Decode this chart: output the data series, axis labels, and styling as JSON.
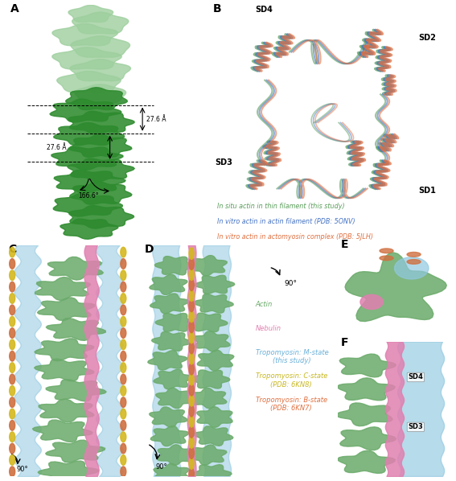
{
  "panel_label_fontsize": 10,
  "panel_label_fontweight": "bold",
  "background_color": "#ffffff",
  "legend_B": {
    "items": [
      {
        "label": "In situ actin in thin filament (this study)",
        "color": "#5a9e5a"
      },
      {
        "label": "In vitro actin in actin filament (PDB: 5ONV)",
        "color": "#4472c4"
      },
      {
        "label": "In vitro actin in actomyosin complex (PDB: 5JLH)",
        "color": "#e07040"
      }
    ],
    "fontsize": 5.8
  },
  "legend_CD": {
    "items": [
      {
        "label": "Actin",
        "color": "#6aaa6a"
      },
      {
        "label": "Nebulin",
        "color": "#e080b0"
      },
      {
        "label": "Tropomyosin: M-state\n(this study)",
        "color": "#6ab0d8"
      },
      {
        "label": "Tropomyosin: C-state\n(PDB: 6KN8)",
        "color": "#c8b820"
      },
      {
        "label": "Tropomyosin: B-state\n(PDB: 6KN7)",
        "color": "#e07040"
      }
    ],
    "fontsize": 6.0
  },
  "colors": {
    "actin_green": "#6aaa6a",
    "actin_light_green": "#9ecf9e",
    "actin_dark_green": "#2d8b2d",
    "nebulin_pink": "#e080b0",
    "tropomyosin_blue": "#90c8e0",
    "tropomyosin_yellow": "#d4b820",
    "tropomyosin_orange": "#d07040",
    "structure_green": "#5a9e5a",
    "structure_blue": "#4472c4",
    "structure_orange": "#e07040"
  }
}
